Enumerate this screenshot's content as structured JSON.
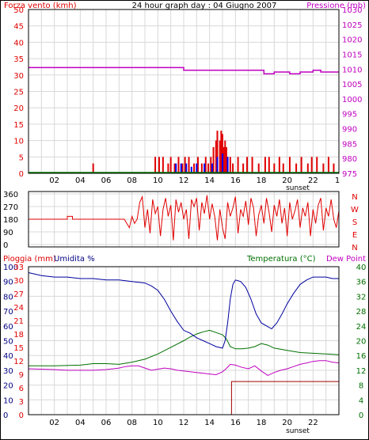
{
  "wind_panel": {
    "title": "24 hour graph day : 04 Giugno 2007",
    "left_label": "Forza vento (kmh)",
    "right_label": "Pressione (mb)",
    "y_ticks": [
      "0",
      "5",
      "10",
      "15",
      "20",
      "25",
      "30",
      "35",
      "40",
      "45",
      "50"
    ],
    "right_ticks": [
      "975",
      "980",
      "985",
      "990",
      "995",
      "1000",
      "1005",
      "1010",
      "1015",
      "1020",
      "1025",
      "1030"
    ],
    "x_ticks": [
      "02",
      "04",
      "06",
      "08",
      "10",
      "12",
      "14",
      "16",
      "18",
      "20",
      "22"
    ],
    "sunset_label": "sunset",
    "corner_label": "1"
  },
  "dir_panel": {
    "y_ticks": [
      "0",
      "90",
      "180",
      "270",
      "360"
    ],
    "compass": [
      "N",
      "W",
      "S",
      "E",
      "N"
    ]
  },
  "climate_panel": {
    "label_rain": "Pioggia (mm)",
    "label_humidity": "Umidita %",
    "label_temperature": "Temperatura (°C)",
    "label_dewpoint": "Dew Point",
    "humidity_ticks": [
      "0",
      "10",
      "20",
      "30",
      "40",
      "50",
      "60",
      "70",
      "80",
      "90",
      "100"
    ],
    "rain_ticks": [
      "0",
      "3",
      "6",
      "9",
      "12",
      "15",
      "18",
      "21",
      "24",
      "27",
      "30",
      "33"
    ],
    "temp_ticks": [
      "0",
      "4",
      "8",
      "12",
      "16",
      "20",
      "24",
      "28",
      "32",
      "36",
      "40"
    ],
    "x_ticks": [
      "02",
      "04",
      "06",
      "08",
      "10",
      "12",
      "14",
      "16",
      "18",
      "20",
      "22"
    ],
    "sunset_label": "sunset"
  },
  "colors": {
    "wind_gust": "#e00000",
    "wind_avg": "#0000ff",
    "pressure": "#c000c0",
    "direction": "#e00000",
    "humidity": "#0000a0",
    "temperature": "#007000",
    "dewpoint": "#c000c0",
    "rain": "#a00000",
    "grid": "#d8d8d8"
  },
  "chart_data": [
    {
      "type": "line",
      "title": "24 hour graph day : 04 Giugno 2007",
      "x_unit": "hour",
      "xlim": [
        0,
        24
      ],
      "ylim_left": [
        0,
        50
      ],
      "ylim_right": [
        975,
        1030
      ],
      "series": [
        {
          "name": "Forza vento (kmh)",
          "axis": "left",
          "kind": "bar",
          "x": [
            5.0,
            9.8,
            10.1,
            10.4,
            10.8,
            11.0,
            11.3,
            11.6,
            11.9,
            12.1,
            12.4,
            12.8,
            13.1,
            13.4,
            13.7,
            13.9,
            14.1,
            14.3,
            14.5,
            14.6,
            14.8,
            14.9,
            15.0,
            15.1,
            15.2,
            15.3,
            15.4,
            15.6,
            15.8,
            16.2,
            16.6,
            16.9,
            17.3,
            17.8,
            18.3,
            18.6,
            19.0,
            19.4,
            19.7,
            20.2,
            20.7,
            21.1,
            21.6,
            21.9,
            22.3,
            22.8,
            23.2,
            23.6
          ],
          "values": [
            3,
            5,
            5,
            5,
            3,
            5,
            3,
            5,
            3,
            5,
            5,
            3,
            5,
            3,
            5,
            3,
            5,
            8,
            10,
            13,
            10,
            13,
            12,
            8,
            10,
            8,
            5,
            5,
            3,
            5,
            3,
            5,
            5,
            3,
            5,
            5,
            3,
            5,
            3,
            5,
            3,
            5,
            3,
            5,
            5,
            3,
            5,
            3
          ]
        },
        {
          "name": "Vento medio (kmh)",
          "axis": "left",
          "kind": "bar",
          "x": [
            11.4,
            11.8,
            12.2,
            12.6,
            13.0,
            13.6,
            14.2,
            14.6,
            15.0,
            15.4
          ],
          "values": [
            3,
            3,
            3,
            2,
            3,
            3,
            3,
            5,
            6,
            5
          ]
        },
        {
          "name": "Pressione (mb)",
          "axis": "right",
          "kind": "step",
          "x": [
            0,
            12.0,
            12.0,
            18.2,
            18.2,
            19.0,
            19.0,
            20.2,
            20.2,
            21.0,
            21.0,
            22.0,
            22.0,
            22.6,
            22.6,
            24
          ],
          "values": [
            1010.5,
            1010.5,
            1009.6,
            1009.6,
            1008.4,
            1008.4,
            1009.0,
            1009.0,
            1008.4,
            1008.4,
            1009.0,
            1009.0,
            1009.6,
            1009.6,
            1009.0,
            1009.0
          ]
        }
      ]
    },
    {
      "type": "line",
      "title": "",
      "x_unit": "hour",
      "xlim": [
        0,
        24
      ],
      "ylim": [
        0,
        360
      ],
      "series": [
        {
          "name": "Direzione vento",
          "x": [
            0,
            3.0,
            3.0,
            3.4,
            3.4,
            7.4,
            7.6,
            7.8,
            8.0,
            8.2,
            8.4,
            8.6,
            8.8,
            9.0,
            9.2,
            9.4,
            9.6,
            9.8,
            10.0,
            10.2,
            10.4,
            10.6,
            10.8,
            11.0,
            11.2,
            11.4,
            11.6,
            11.8,
            12.0,
            12.2,
            12.4,
            12.6,
            12.8,
            13.0,
            13.2,
            13.4,
            13.6,
            13.8,
            14.0,
            14.2,
            14.4,
            14.6,
            14.8,
            15.0,
            15.2,
            15.4,
            15.6,
            15.8,
            16.0,
            16.2,
            16.4,
            16.6,
            16.8,
            17.0,
            17.2,
            17.4,
            17.6,
            17.8,
            18.0,
            18.2,
            18.4,
            18.6,
            18.8,
            19.0,
            19.2,
            19.4,
            19.6,
            19.8,
            20.0,
            20.2,
            20.4,
            20.6,
            20.8,
            21.0,
            21.2,
            21.4,
            21.6,
            21.8,
            22.0,
            22.2,
            22.4,
            22.6,
            22.8,
            23.0,
            23.2,
            23.4,
            23.6,
            23.8,
            24.0
          ],
          "values": [
            180,
            180,
            200,
            200,
            180,
            180,
            150,
            120,
            200,
            150,
            180,
            300,
            340,
            120,
            250,
            80,
            320,
            220,
            270,
            60,
            250,
            330,
            200,
            280,
            30,
            320,
            230,
            300,
            180,
            250,
            40,
            320,
            270,
            330,
            100,
            300,
            220,
            350,
            180,
            290,
            200,
            30,
            250,
            120,
            40,
            300,
            200,
            260,
            340,
            80,
            250,
            200,
            310,
            140,
            330,
            260,
            60,
            210,
            280,
            150,
            330,
            230,
            90,
            280,
            200,
            320,
            150,
            260,
            60,
            300,
            180,
            240,
            320,
            120,
            260,
            200,
            300,
            60,
            250,
            150,
            280,
            330,
            100,
            260,
            200,
            320,
            180,
            120,
            240
          ]
        }
      ]
    },
    {
      "type": "line",
      "title": "",
      "x_unit": "hour",
      "xlim": [
        0,
        24
      ],
      "ylim_humidity": [
        0,
        100
      ],
      "ylim_rain": [
        0,
        33
      ],
      "ylim_temperature": [
        0,
        40
      ],
      "series": [
        {
          "name": "Umidita %",
          "axis": "humidity",
          "x": [
            0,
            1,
            2,
            3,
            4,
            5,
            6,
            7,
            8,
            9,
            9.5,
            10,
            10.5,
            11,
            11.5,
            12,
            12.5,
            13,
            13.5,
            14,
            14.5,
            15,
            15.2,
            15.4,
            15.6,
            15.8,
            16,
            16.4,
            16.8,
            17.2,
            17.6,
            18,
            18.4,
            18.8,
            19.2,
            19.6,
            20,
            20.5,
            21,
            21.5,
            22,
            22.5,
            23,
            23.5,
            24
          ],
          "values": [
            96,
            94,
            93,
            93,
            92,
            92,
            91,
            91,
            90,
            89,
            87,
            84,
            78,
            70,
            63,
            57,
            55,
            52,
            50,
            48,
            46,
            45,
            50,
            62,
            78,
            88,
            91,
            90,
            86,
            78,
            68,
            62,
            60,
            58,
            62,
            68,
            75,
            82,
            88,
            91,
            93,
            93,
            93,
            92,
            92
          ]
        },
        {
          "name": "Pioggia (mm)",
          "axis": "rain",
          "kind": "step",
          "x": [
            0,
            15.7,
            15.7,
            24
          ],
          "values": [
            0,
            0,
            7.4,
            7.4
          ]
        },
        {
          "name": "Temperatura (°C)",
          "axis": "temperature",
          "x": [
            0,
            2,
            4,
            5,
            6,
            7,
            7.5,
            8,
            9,
            10,
            11,
            12,
            12.5,
            13,
            13.5,
            14,
            14.5,
            15,
            15.3,
            15.6,
            16,
            16.5,
            17,
            17.5,
            18,
            18.5,
            19,
            20,
            21,
            22,
            23,
            24
          ],
          "values": [
            13.2,
            13.2,
            13.4,
            13.8,
            13.8,
            13.6,
            13.9,
            14.2,
            15.0,
            16.4,
            18.2,
            20.0,
            21.0,
            21.8,
            22.4,
            22.8,
            22.2,
            21.6,
            20.5,
            18.4,
            17.8,
            17.8,
            18.0,
            18.4,
            19.2,
            18.8,
            18.0,
            17.4,
            16.8,
            16.6,
            16.4,
            16.2
          ]
        },
        {
          "name": "Dew Point",
          "axis": "temperature",
          "x": [
            0,
            1,
            2,
            3,
            4,
            5,
            6,
            7,
            7.5,
            8,
            8.5,
            9,
            9.5,
            10,
            10.5,
            11,
            11.5,
            12,
            12.5,
            13,
            13.5,
            14,
            14.5,
            15,
            15.3,
            15.6,
            16,
            16.5,
            17,
            17.5,
            18,
            18.5,
            19,
            19.5,
            20,
            20.5,
            21,
            21.5,
            22,
            22.5,
            23,
            23.5,
            24
          ],
          "values": [
            12.4,
            12.3,
            12.2,
            12.0,
            12.0,
            12.0,
            12.2,
            12.6,
            13.0,
            13.2,
            13.2,
            12.6,
            12.0,
            12.3,
            12.6,
            12.4,
            12.0,
            11.8,
            11.6,
            11.4,
            11.2,
            11.0,
            10.8,
            11.6,
            12.5,
            13.6,
            13.4,
            12.8,
            12.4,
            13.2,
            11.8,
            10.6,
            11.4,
            12.0,
            12.4,
            13.0,
            13.6,
            14.0,
            14.4,
            14.6,
            14.6,
            14.2,
            14.0
          ]
        }
      ]
    }
  ]
}
